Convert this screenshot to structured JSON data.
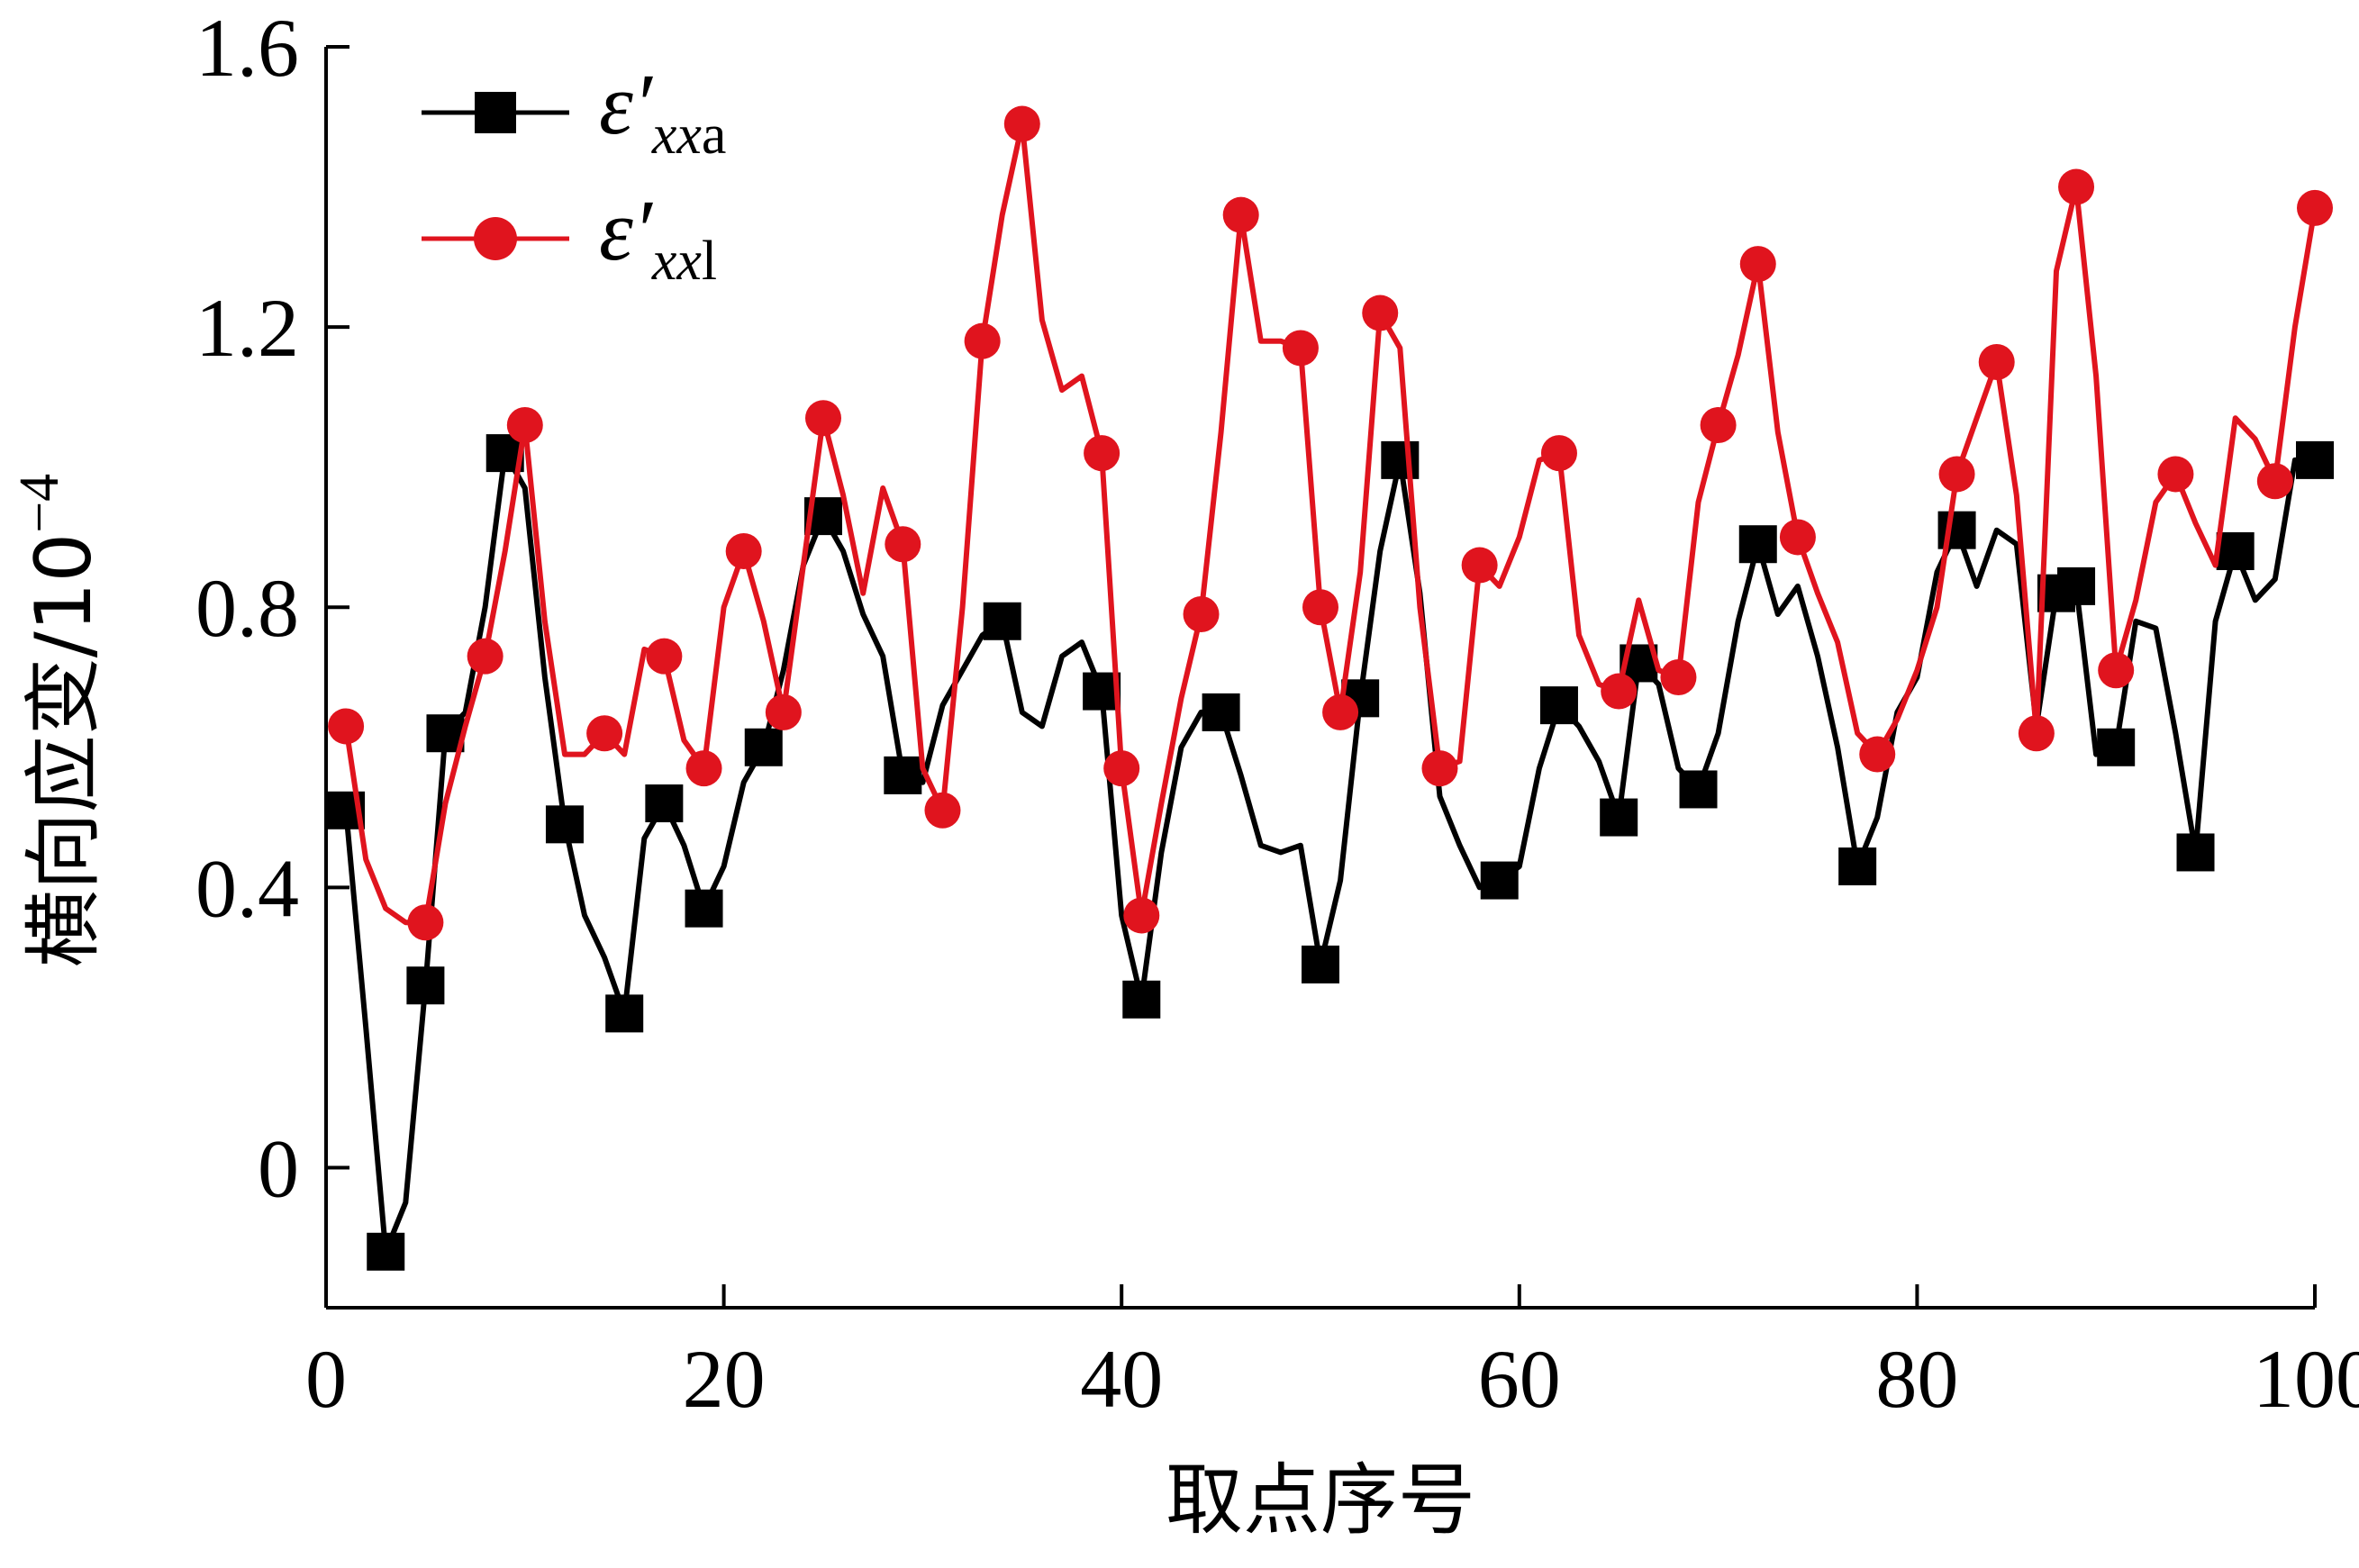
{
  "chart_data": {
    "type": "line",
    "xlabel": "取点序号",
    "ylabel_main": "横向应变/10",
    "ylabel_exp": "−4",
    "xlim": [
      0,
      100
    ],
    "ylim": [
      -0.2,
      1.6
    ],
    "x_ticks": [
      "0",
      "20",
      "40",
      "60",
      "80",
      "100"
    ],
    "y_ticks": [
      "0",
      "0.4",
      "0.8",
      "1.2",
      "1.6"
    ],
    "x_tick_values": [
      0,
      20,
      40,
      60,
      80,
      100
    ],
    "y_tick_values": [
      0,
      0.4,
      0.8,
      1.2,
      1.6
    ],
    "legend_position": "top-left",
    "series": [
      {
        "name": "ε′xxa",
        "legend_symbol": "ε′",
        "legend_subscript_italic": "xx",
        "legend_subscript_upright": "a",
        "color": "#000000",
        "marker": "square",
        "x": [
          1,
          2,
          3,
          4,
          5,
          6,
          7,
          8,
          9,
          10,
          11,
          12,
          13,
          14,
          15,
          16,
          17,
          18,
          19,
          20,
          21,
          22,
          23,
          24,
          25,
          26,
          27,
          28,
          29,
          30,
          31,
          32,
          33,
          34,
          35,
          36,
          37,
          38,
          39,
          40,
          41,
          42,
          43,
          44,
          45,
          46,
          47,
          48,
          49,
          50,
          51,
          52,
          53,
          54,
          55,
          56,
          57,
          58,
          59,
          60,
          61,
          62,
          63,
          64,
          65,
          66,
          67,
          68,
          69,
          70,
          71,
          72,
          73,
          74,
          75,
          76,
          77,
          78,
          79,
          80,
          81,
          82,
          83,
          84,
          85,
          86,
          87,
          88,
          89,
          90,
          91,
          92,
          93,
          94,
          95,
          96,
          97,
          98,
          99,
          100
        ],
        "values": [
          0.51,
          0.2,
          -0.12,
          -0.05,
          0.26,
          0.62,
          0.65,
          0.8,
          1.02,
          0.97,
          0.7,
          0.49,
          0.36,
          0.3,
          0.22,
          0.47,
          0.52,
          0.46,
          0.37,
          0.43,
          0.55,
          0.6,
          0.71,
          0.86,
          0.93,
          0.88,
          0.79,
          0.73,
          0.56,
          0.55,
          0.66,
          0.71,
          0.76,
          0.78,
          0.65,
          0.63,
          0.73,
          0.75,
          0.68,
          0.36,
          0.24,
          0.45,
          0.6,
          0.65,
          0.65,
          0.56,
          0.46,
          0.45,
          0.46,
          0.29,
          0.41,
          0.67,
          0.88,
          1.01,
          0.82,
          0.53,
          0.46,
          0.4,
          0.41,
          0.43,
          0.57,
          0.66,
          0.63,
          0.58,
          0.5,
          0.72,
          0.69,
          0.57,
          0.54,
          0.62,
          0.78,
          0.89,
          0.79,
          0.83,
          0.73,
          0.6,
          0.43,
          0.5,
          0.65,
          0.7,
          0.85,
          0.91,
          0.83,
          0.91,
          0.89,
          0.63,
          0.82,
          0.83,
          0.59,
          0.6,
          0.78,
          0.77,
          0.62,
          0.45,
          0.78,
          0.88,
          0.81,
          0.84,
          1.01,
          1.01
        ]
      },
      {
        "name": "ε′xxl",
        "legend_symbol": "ε′",
        "legend_subscript_italic": "xx",
        "legend_subscript_upright": "l",
        "color": "#e0141e",
        "marker": "circle",
        "x": [
          1,
          2,
          3,
          4,
          5,
          6,
          7,
          8,
          9,
          10,
          11,
          12,
          13,
          14,
          15,
          16,
          17,
          18,
          19,
          20,
          21,
          22,
          23,
          24,
          25,
          26,
          27,
          28,
          29,
          30,
          31,
          32,
          33,
          34,
          35,
          36,
          37,
          38,
          39,
          40,
          41,
          42,
          43,
          44,
          45,
          46,
          47,
          48,
          49,
          50,
          51,
          52,
          53,
          54,
          55,
          56,
          57,
          58,
          59,
          60,
          61,
          62,
          63,
          64,
          65,
          66,
          67,
          68,
          69,
          70,
          71,
          72,
          73,
          74,
          75,
          76,
          77,
          78,
          79,
          80,
          81,
          82,
          83,
          84,
          85,
          86,
          87,
          88,
          89,
          90,
          91,
          92,
          93,
          94,
          95,
          96,
          97,
          98,
          99,
          100
        ],
        "values": [
          0.63,
          0.44,
          0.37,
          0.35,
          0.35,
          0.52,
          0.63,
          0.73,
          0.88,
          1.06,
          0.78,
          0.59,
          0.59,
          0.62,
          0.59,
          0.74,
          0.73,
          0.61,
          0.57,
          0.8,
          0.88,
          0.78,
          0.65,
          0.86,
          1.07,
          0.96,
          0.82,
          0.97,
          0.89,
          0.57,
          0.51,
          0.8,
          1.18,
          1.36,
          1.49,
          1.21,
          1.11,
          1.13,
          1.02,
          0.57,
          0.36,
          0.52,
          0.67,
          0.79,
          1.05,
          1.36,
          1.18,
          1.18,
          1.17,
          0.8,
          0.65,
          0.85,
          1.22,
          1.17,
          0.8,
          0.57,
          0.58,
          0.86,
          0.83,
          0.9,
          1.01,
          1.02,
          0.76,
          0.69,
          0.68,
          0.81,
          0.71,
          0.7,
          0.95,
          1.06,
          1.16,
          1.29,
          1.05,
          0.9,
          0.82,
          0.75,
          0.62,
          0.59,
          0.64,
          0.71,
          0.8,
          0.99,
          1.07,
          1.15,
          0.96,
          0.62,
          1.28,
          1.4,
          1.13,
          0.71,
          0.81,
          0.95,
          0.99,
          0.92,
          0.86,
          1.07,
          1.04,
          0.98,
          1.2,
          1.37
        ]
      }
    ]
  }
}
